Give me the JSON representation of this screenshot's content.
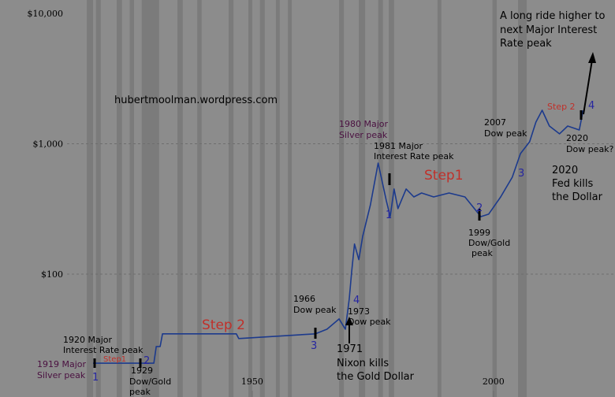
{
  "chart_data": {
    "type": "line",
    "color": "#1c3a8c",
    "band_color": "#7b7b7b",
    "log_scale": true,
    "grid": true,
    "xlim": [
      1911.6,
      2025.2
    ],
    "xticks": [
      1950,
      2000
    ],
    "ylim": [
      11.4,
      10000
    ],
    "yticks": [
      {
        "value": 10000,
        "label": "$10,000"
      },
      {
        "value": 1000,
        "label": "$1,000"
      },
      {
        "value": 100,
        "label": "$100"
      }
    ],
    "x": [
      1917.0,
      1929.6,
      1930.1,
      1930.9,
      1931.4,
      1946.7,
      1947.2,
      1963.1,
      1965.5,
      1968.0,
      1969.3,
      1970.1,
      1970.6,
      1971.2,
      1972.1,
      1972.9,
      1974.5,
      1976.1,
      1977.8,
      1978.6,
      1979.4,
      1980.2,
      1981.9,
      1983.5,
      1985.1,
      1987.6,
      1990.8,
      1994.1,
      1997.4,
      1999.0,
      2001.5,
      2003.9,
      2005.6,
      2007.5,
      2008.8,
      2010.1,
      2011.6,
      2013.7,
      2015.4,
      2017.8,
      2018.6
    ],
    "values": [
      20.7,
      20.7,
      27.8,
      27.8,
      34.8,
      34.8,
      32.0,
      34.8,
      37.8,
      45.3,
      37.8,
      64.1,
      104,
      170,
      129,
      195,
      340,
      711,
      365,
      276,
      450,
      318,
      450,
      391,
      419,
      391,
      419,
      391,
      276,
      288,
      391,
      553,
      840,
      1035,
      1466,
      1806,
      1368,
      1191,
      1368,
      1276,
      1806
    ],
    "bands": [
      [
        1915.7,
        1917.0
      ],
      [
        1917.6,
        1918.6
      ],
      [
        1921.9,
        1923.0
      ],
      [
        1924.6,
        1925.5
      ],
      [
        1927.1,
        1930.7
      ],
      [
        1934.5,
        1935.6
      ],
      [
        1938.6,
        1939.5
      ],
      [
        1945.1,
        1946.1
      ],
      [
        1949.2,
        1950.0
      ],
      [
        1951.6,
        1952.6
      ],
      [
        1954.9,
        1955.7
      ],
      [
        1957.4,
        1958.2
      ],
      [
        1968.0,
        1969.0
      ],
      [
        1972.1,
        1973.4
      ],
      [
        1976.1,
        1977.1
      ],
      [
        1978.3,
        1979.4
      ],
      [
        1988.4,
        1989.2
      ],
      [
        1999.8,
        2000.7
      ],
      [
        2005.1,
        2006.9
      ]
    ],
    "annotations": [
      "A long ride higher to",
      "next Major Interest",
      "Rate peak",
      "hubertmoolman.wordpress.com",
      "1980 Major",
      "Silver peak",
      "1981 Major",
      "Interest Rate peak",
      "Step1",
      "2007",
      "Dow peak",
      "Step 2",
      "4",
      "2020",
      "Dow peak?",
      "2020",
      "Fed kills",
      "the Dollar",
      "1",
      "2",
      "3",
      "1999",
      "Dow/Gold",
      "peak",
      "1966",
      "Dow peak",
      "4",
      "1973",
      "Dow peak",
      "Step 2",
      "3",
      "1971",
      "Nixon kills",
      "the Gold Dollar",
      "1920 Major",
      "Interest Rate peak",
      "Step1",
      "2",
      "1919 Major",
      "Silver peak",
      "1",
      "1929",
      "Dow/Gold",
      "peak"
    ]
  }
}
